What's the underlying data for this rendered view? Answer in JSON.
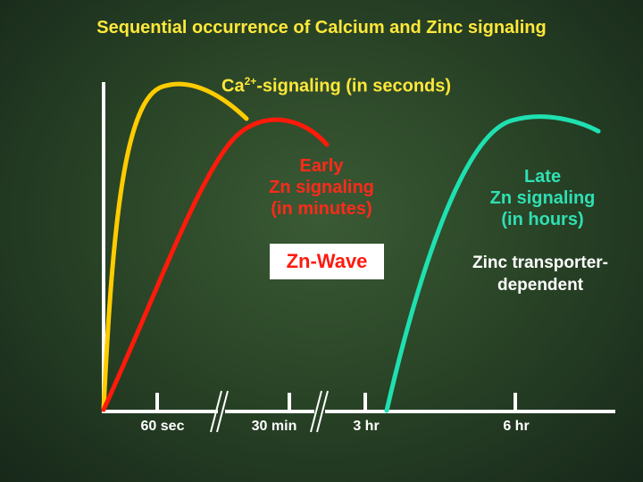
{
  "title": "Sequential occurrence of Calcium and Zinc signaling",
  "ca_signaling": {
    "prefix": "Ca",
    "superscript": "2+",
    "suffix": "-signaling (in seconds)"
  },
  "early_zn": {
    "line1": "Early",
    "line2": "Zn signaling",
    "line3": "(in minutes)"
  },
  "zn_wave": "Zn-Wave",
  "late_zn": {
    "line1": "Late",
    "line2": "Zn signaling",
    "line3": "(in hours)"
  },
  "transporter": {
    "line1": "Zinc transporter-",
    "line2": "dependent"
  },
  "axis": {
    "ticks": [
      "60 sec",
      "30 min",
      "3 hr",
      "6 hr"
    ]
  },
  "colors": {
    "ca": "#ffcc00",
    "early_zn": "#ff1a0a",
    "late_zn": "#1fe0b0",
    "axis": "#ffffff"
  }
}
